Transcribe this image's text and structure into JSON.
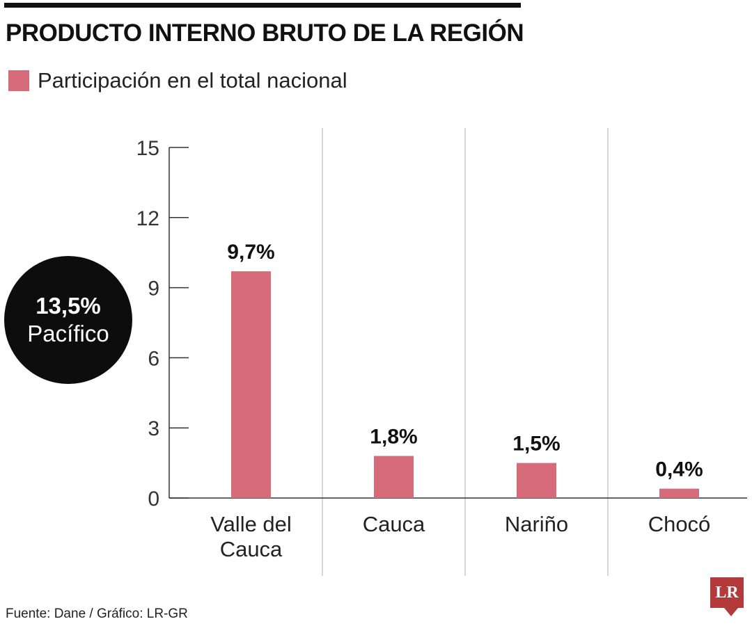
{
  "header": {
    "title": "PRODUCTO INTERNO BRUTO DE LA REGIÓN"
  },
  "legend": {
    "label": "Participación en el total nacional",
    "color": "#d66b7a"
  },
  "badge": {
    "value": "13,5%",
    "label": "Pacífico"
  },
  "chart_data": {
    "type": "bar",
    "categories": [
      "Valle del Cauca",
      "Cauca",
      "Nariño",
      "Chocó"
    ],
    "category_lines": [
      [
        "Valle del",
        "Cauca"
      ],
      [
        "Cauca"
      ],
      [
        "Nariño"
      ],
      [
        "Chocó"
      ]
    ],
    "series": [
      {
        "name": "Participación en el total nacional",
        "values": [
          9.7,
          1.8,
          1.5,
          0.4
        ],
        "labels": [
          "9,7%",
          "1,8%",
          "1,5%",
          "0,4%"
        ]
      }
    ],
    "ylim": [
      0,
      15
    ],
    "yticks": [
      0,
      3,
      6,
      9,
      12,
      15
    ],
    "bar_color": "#d66b7a",
    "vertical_separators": true,
    "legend_position": "top-left"
  },
  "footer": {
    "source": "Fuente: Dane / Gráfico: LR-GR",
    "logo_text": "LR",
    "logo_color": "#b4393a"
  }
}
